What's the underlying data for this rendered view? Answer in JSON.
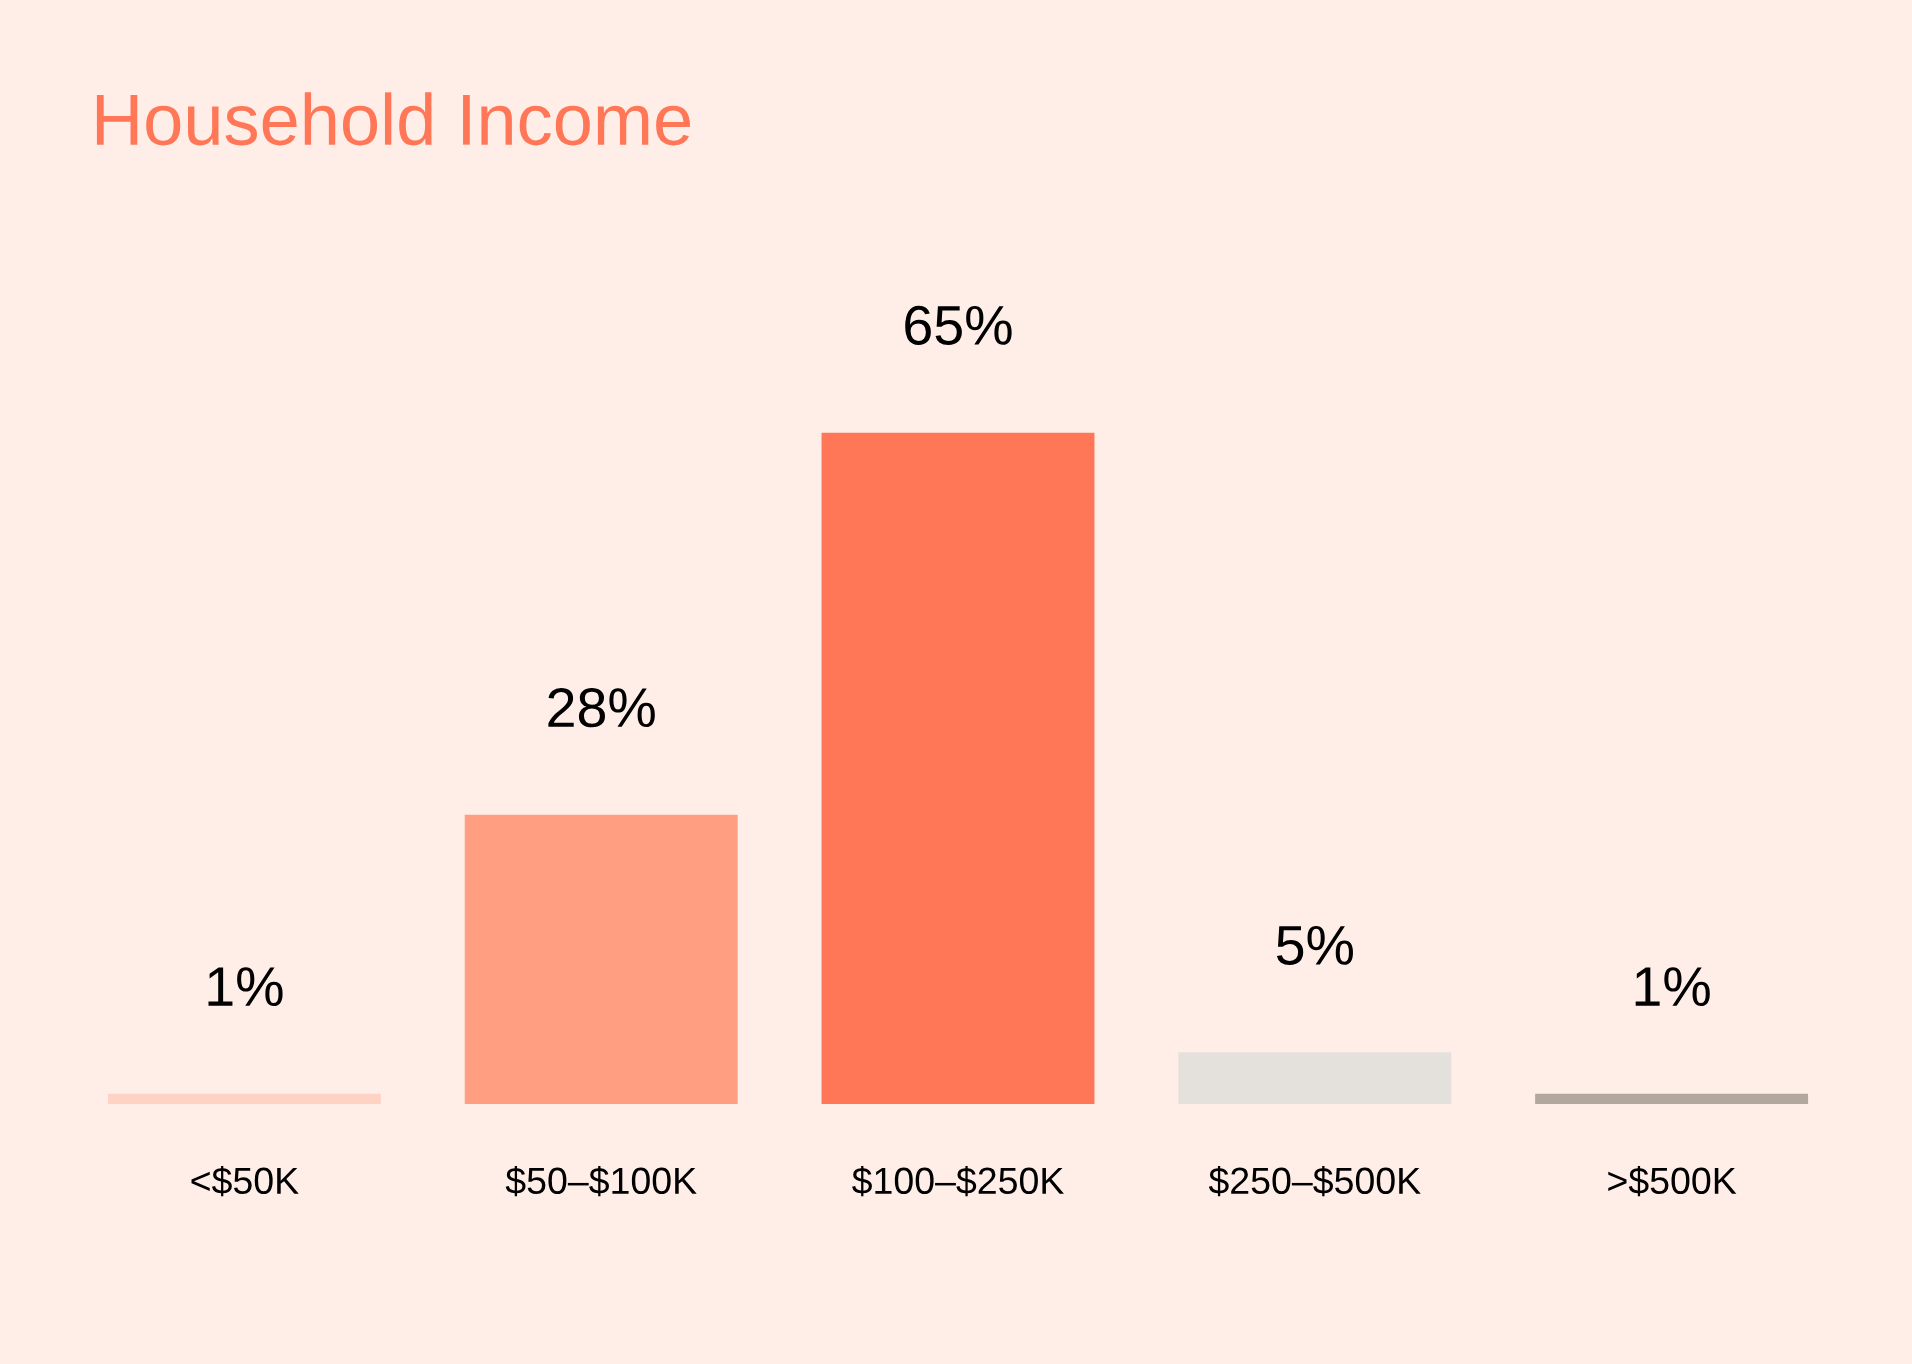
{
  "chart_data": {
    "type": "bar",
    "title": "Household Income",
    "categories": [
      "<$50K",
      "$50–$100K",
      "$100–$250K",
      "$250–$500K",
      ">$500K"
    ],
    "values": [
      1,
      28,
      65,
      5,
      1
    ],
    "colors": [
      "#ffd3c4",
      "#ff9e80",
      "#ff7757",
      "#e4e0dc",
      "#b3a89e"
    ],
    "value_labels": [
      "1%",
      "28%",
      "65%",
      "5%",
      "1%"
    ],
    "grid": false,
    "legend": false
  }
}
